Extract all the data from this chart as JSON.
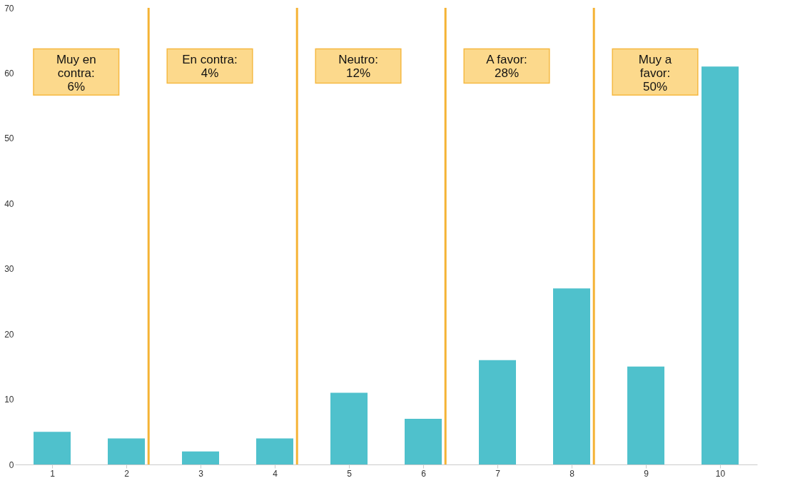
{
  "chart_data": {
    "type": "bar",
    "x": [
      1,
      2,
      3,
      4,
      5,
      6,
      7,
      8,
      9,
      10
    ],
    "values": [
      5,
      4,
      2,
      4,
      11,
      7,
      16,
      27,
      15,
      61
    ],
    "color": "#4fc1cc",
    "xlim": [
      0.5,
      10.5
    ],
    "xticks": [
      1,
      2,
      3,
      4,
      5,
      6,
      7,
      8,
      9,
      10
    ],
    "ylim": [
      0,
      70
    ],
    "yticks": [
      0,
      10,
      20,
      30,
      40,
      50,
      60,
      70
    ],
    "grid": false,
    "ref_lines": [
      {
        "axis": "x",
        "value": 2.3,
        "color": "#f5b335"
      },
      {
        "axis": "x",
        "value": 4.3,
        "color": "#f5b335"
      },
      {
        "axis": "x",
        "value": 6.3,
        "color": "#f5b335"
      },
      {
        "axis": "x",
        "value": 8.3,
        "color": "#f5b335"
      }
    ],
    "annotations": [
      "Muy en\ncontra:\n6%",
      "En contra:\n4%",
      "Neutro:\n12%",
      "A favor:\n28%",
      "Muy a\nfavor:\n50%"
    ]
  }
}
